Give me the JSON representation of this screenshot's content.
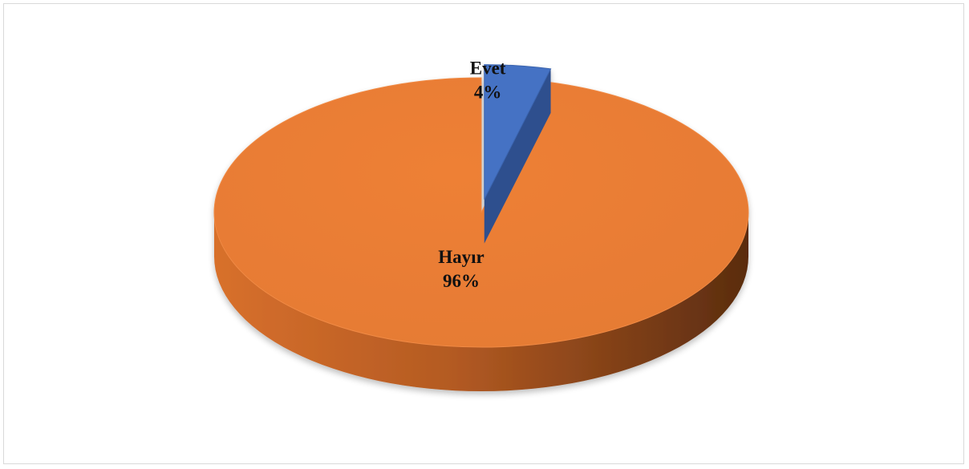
{
  "chart_data": {
    "type": "pie",
    "style": "3d-exploded",
    "slices": [
      {
        "name": "Evet",
        "value": 4,
        "label": "4%",
        "color": "#4472C4",
        "exploded": true
      },
      {
        "name": "Hayır",
        "value": 96,
        "label": "96%",
        "color": "#ED7D31",
        "exploded": false
      }
    ],
    "title": "",
    "legend": "none"
  }
}
